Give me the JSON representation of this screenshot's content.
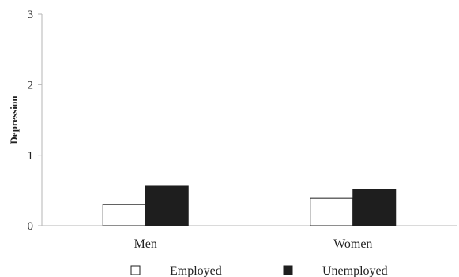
{
  "chart_data": {
    "type": "bar",
    "categories": [
      "Men",
      "Women"
    ],
    "series": [
      {
        "name": "Employed",
        "values": [
          0.3,
          0.39
        ],
        "color": "#ffffff"
      },
      {
        "name": "Unemployed",
        "values": [
          0.56,
          0.52
        ],
        "color": "#1e1e1e"
      }
    ],
    "xlabel": "",
    "ylabel": "Depression",
    "ylim": [
      0,
      3
    ],
    "yticks": [
      "0",
      "1",
      "2",
      "3"
    ],
    "grid": false,
    "legend_position": "bottom"
  }
}
